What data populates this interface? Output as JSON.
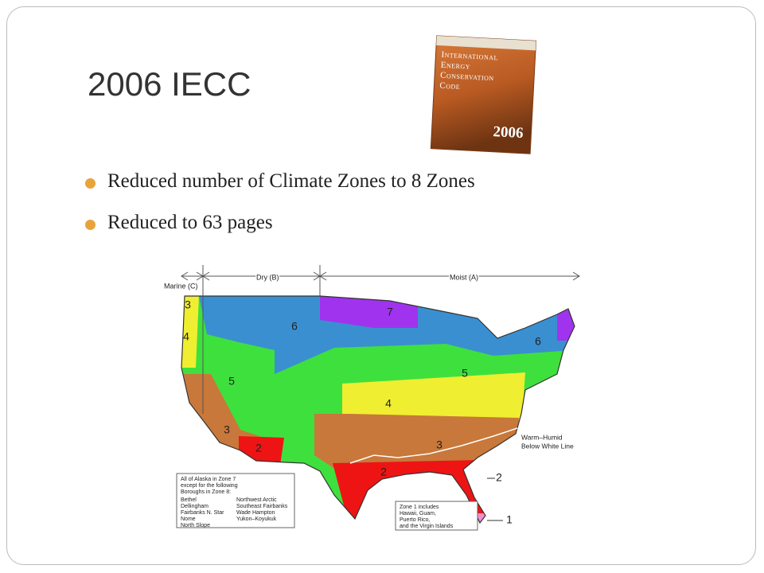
{
  "slide": {
    "title": "2006 IECC",
    "bullets": [
      "Reduced number of Climate Zones to 8 Zones",
      "Reduced to 63 pages"
    ],
    "book_cover": {
      "title_lines": [
        "International",
        "Energy",
        "Conservation",
        "Code"
      ],
      "year": "2006"
    },
    "map": {
      "moisture_labels": [
        "Marine (C)",
        "Dry (B)",
        "Moist (A)"
      ],
      "zone_labels": [
        "7",
        "6",
        "4",
        "5",
        "6",
        "5",
        "4",
        "3",
        "2",
        "3",
        "2",
        "2",
        "1",
        "3"
      ],
      "warm_humid_note": [
        "Warm–Humid",
        "Below White Line"
      ],
      "alaska_note": {
        "intro": [
          "All of Alaska in Zone 7",
          "except for the following",
          "Boroughs in Zone 8:"
        ],
        "boroughs": [
          "Bethel",
          "Dellingham",
          "Fairbanks N. Star",
          "Nome",
          "North Slope",
          "Northwest Arctic",
          "Southeast Fairbanks",
          "Wade Hampton",
          "Yukon–Koyukuk"
        ]
      },
      "zone1_note": [
        "Zone 1 includes",
        "Hawaii, Guam,",
        "Puerto Rico,",
        "and the Virgin Islands"
      ]
    }
  }
}
